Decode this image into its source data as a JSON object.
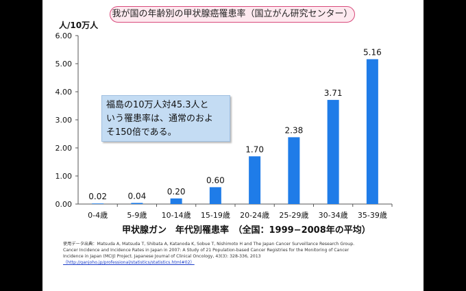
{
  "title": "我が国の年齢別の甲状腺癌罹患率（国立がん研究センター）",
  "y_unit": "人/10万人",
  "note": [
    "福島の10万人対45.3人と",
    "いう罹患率は、通常のおよ",
    "そ150倍である。"
  ],
  "x_axis_title": "甲状腺ガン　年代別罹患率　（全国：1999−2008年の平均）",
  "source_lines": [
    "使用データ出典：Matsuda A, Matsuda T, Shibata A, Katanoda K, Sobue T, Nishimoto H and The Japan Cancer Surveillance Research Group.",
    "Cancer Incidence and Incidence Rates in Japan in 2007: A Study of 21 Population-based Cancer Registries for the Monitoring of Cancer",
    "Incidence in Japan (MCIJ) Project. Japanese Journal of Clinical Oncology, 43(3): 328-336, 2013",
    "（http://ganjoho.jp/professional/statistics/statistics.html#02）"
  ],
  "colors": {
    "bar": "#1f7ce8",
    "title_border": "#d8487a",
    "title_bg": "#fde9ef",
    "note_bg": "#c4dcf3"
  },
  "chart_data": {
    "type": "bar",
    "categories": [
      "0-4歳",
      "5-9歳",
      "10-14歳",
      "15-19歳",
      "20-24歳",
      "25-29歳",
      "30-34歳",
      "35-39歳"
    ],
    "values": [
      0.02,
      0.04,
      0.2,
      0.6,
      1.7,
      2.38,
      3.71,
      5.16
    ],
    "value_labels": [
      "0.02",
      "0.04",
      "0.20",
      "0.60",
      "1.70",
      "2.38",
      "3.71",
      "5.16"
    ],
    "yticks": [
      "0.00",
      "1.00",
      "2.00",
      "3.00",
      "4.00",
      "5.00",
      "6.00"
    ],
    "ylim": [
      0,
      6
    ],
    "ylabel": "人/10万人",
    "grid": false
  }
}
